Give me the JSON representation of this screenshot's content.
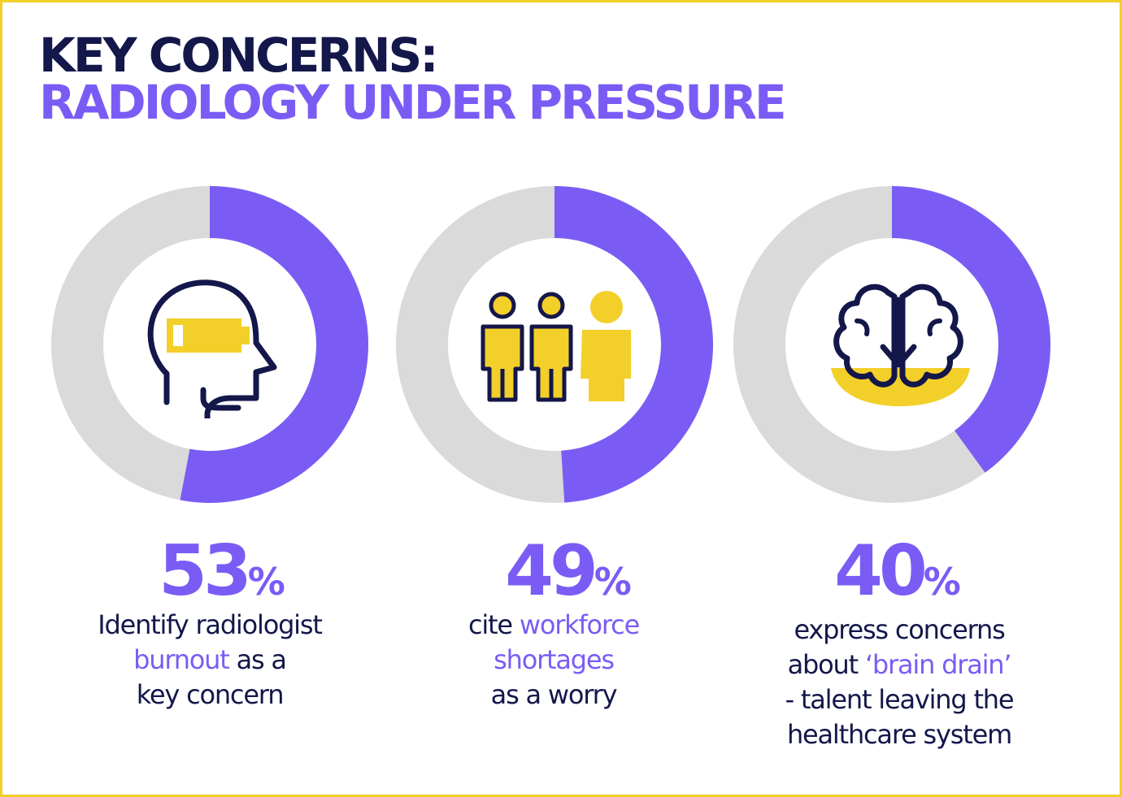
{
  "title": {
    "line1": "KEY CONCERNS:",
    "line2": "RADIOLOGY UNDER PRESSURE"
  },
  "colors": {
    "accent": "#7a5cf5",
    "track": "#dadada",
    "navy": "#13174a",
    "yellow": "#f3cf2a"
  },
  "stats": [
    {
      "value": "53",
      "unit": "%",
      "desc_lines": [
        [
          {
            "text": "Identify radiologist",
            "hl": false
          }
        ],
        [
          {
            "text": "burnout",
            "hl": true
          },
          {
            "text": " as a",
            "hl": false
          }
        ],
        [
          {
            "text": "key concern",
            "hl": false
          }
        ]
      ],
      "icon": "head-battery-icon"
    },
    {
      "value": "49",
      "unit": "%",
      "desc_lines": [
        [
          {
            "text": "cite ",
            "hl": false
          },
          {
            "text": "workforce",
            "hl": true
          }
        ],
        [
          {
            "text": "shortages",
            "hl": true
          }
        ],
        [
          {
            "text": "as a worry",
            "hl": false
          }
        ]
      ],
      "icon": "people-group-icon"
    },
    {
      "value": "40",
      "unit": "%",
      "desc_lines": [
        [
          {
            "text": "express concerns",
            "hl": false
          }
        ],
        [
          {
            "text": "about ",
            "hl": false
          },
          {
            "text": "‘brain drain’",
            "hl": true
          }
        ],
        [
          {
            "text": "- talent leaving the",
            "hl": false
          }
        ],
        [
          {
            "text": "healthcare system",
            "hl": false
          }
        ]
      ],
      "icon": "brain-drain-icon"
    }
  ],
  "chart_data": {
    "type": "pie",
    "subtype": "donut",
    "categories": [
      "burnout",
      "workforce shortages",
      "brain drain"
    ],
    "values": [
      53,
      49,
      40
    ],
    "unit": "%",
    "max": 100,
    "title": "KEY CONCERNS: RADIOLOGY UNDER PRESSURE"
  }
}
